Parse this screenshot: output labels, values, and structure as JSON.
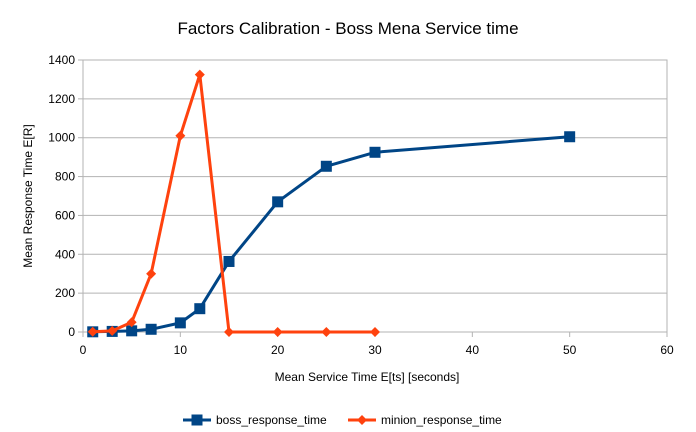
{
  "chart_data": {
    "type": "line",
    "title": "Factors Calibration - Boss Mena Service time",
    "xlabel": "Mean Service Time E[ts] [seconds]",
    "ylabel": "Mean Response Time E[R]",
    "xlim": [
      0,
      60
    ],
    "ylim": [
      0,
      1400
    ],
    "xticks": [
      "0",
      "10",
      "20",
      "30",
      "40",
      "50",
      "60"
    ],
    "yticks": [
      "0",
      "200",
      "400",
      "600",
      "800",
      "1000",
      "1200",
      "1400"
    ],
    "grid": "horizontal",
    "legend_position": "bottom",
    "series": [
      {
        "name": "boss_response_time",
        "color": "#004586",
        "marker": "square",
        "x": [
          1,
          3,
          5,
          7,
          10,
          12,
          15,
          20,
          25,
          30,
          50
        ],
        "y": [
          1,
          3,
          6,
          14,
          47,
          120,
          363,
          670,
          853,
          925,
          1005
        ]
      },
      {
        "name": "minion_response_time",
        "color": "#ff420e",
        "marker": "diamond",
        "x": [
          1,
          3,
          5,
          7,
          10,
          12,
          15,
          20,
          25,
          30
        ],
        "y": [
          1,
          6,
          50,
          300,
          1010,
          1325,
          0,
          0,
          0,
          0
        ]
      }
    ]
  }
}
